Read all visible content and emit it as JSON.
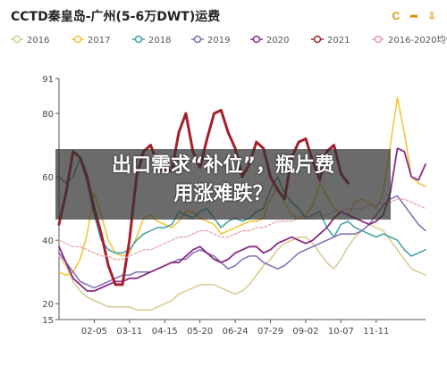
{
  "header": {
    "title": "CCTD秦皇岛-广州(5-6万DWT)运费",
    "tools": [
      {
        "icon": "refresh-icon",
        "glyph": "C"
      },
      {
        "icon": "share-icon",
        "glyph": "➦"
      },
      {
        "icon": "save-icon",
        "glyph": "⇩"
      }
    ]
  },
  "headline": {
    "line1": "出口需求“补位”，瓶片费",
    "line2": "用涨难跌？"
  },
  "chart_data": {
    "type": "line",
    "ylim": [
      15,
      91
    ],
    "yticks": [
      15,
      20,
      40,
      60,
      80,
      91
    ],
    "xlim": [
      0,
      52
    ],
    "xticks": [
      {
        "x": 5,
        "label": "02-05"
      },
      {
        "x": 10,
        "label": "03-11"
      },
      {
        "x": 15,
        "label": "04-15"
      },
      {
        "x": 20,
        "label": "05-20"
      },
      {
        "x": 25,
        "label": "06-24"
      },
      {
        "x": 30,
        "label": "07-29"
      },
      {
        "x": 35,
        "label": "09-02"
      },
      {
        "x": 40,
        "label": "10-07"
      },
      {
        "x": 45,
        "label": "11-11"
      }
    ],
    "grid": false,
    "legend_position": "top",
    "series": [
      {
        "name": "2016",
        "color": "#d8c98a",
        "dash": false,
        "width": 1.5,
        "values": [
          35,
          32,
          27,
          24,
          22,
          21,
          20,
          19,
          19,
          19,
          19,
          18,
          18,
          18,
          19,
          20,
          21,
          23,
          24,
          25,
          26,
          26,
          26,
          25,
          24,
          23,
          24,
          26,
          29,
          32,
          34,
          37,
          39,
          40,
          41,
          41,
          39,
          36,
          33,
          31,
          34,
          38,
          41,
          43,
          45,
          44,
          43,
          40,
          37,
          34,
          31,
          30,
          29
        ]
      },
      {
        "name": "2017",
        "color": "#f2c230",
        "dash": false,
        "width": 1.5,
        "values": [
          30,
          29,
          30,
          34,
          42,
          55,
          48,
          40,
          36,
          35,
          36,
          41,
          47,
          48,
          46,
          45,
          44,
          46,
          49,
          49,
          47,
          46,
          45,
          42,
          43,
          44,
          45,
          46,
          46,
          47,
          53,
          57,
          52,
          48,
          47,
          48,
          51,
          58,
          54,
          50,
          49,
          48,
          52,
          53,
          52,
          50,
          55,
          70,
          85,
          74,
          60,
          58,
          57
        ]
      },
      {
        "name": "2018",
        "color": "#3a9ea5",
        "dash": false,
        "width": 1.5,
        "values": [
          60,
          58,
          60,
          66,
          58,
          48,
          40,
          37,
          36,
          36,
          37,
          40,
          42,
          43,
          44,
          44,
          45,
          49,
          48,
          47,
          49,
          50,
          47,
          44,
          46,
          47,
          46,
          47,
          49,
          50,
          56,
          60,
          55,
          52,
          50,
          47,
          48,
          49,
          44,
          41,
          45,
          46,
          44,
          43,
          42,
          41,
          42,
          41,
          40,
          37,
          35,
          36,
          37
        ]
      },
      {
        "name": "2019",
        "color": "#7d6bb3",
        "dash": false,
        "width": 1.5,
        "values": [
          36,
          33,
          30,
          27,
          26,
          25,
          26,
          27,
          28,
          29,
          29,
          30,
          30,
          30,
          31,
          32,
          33,
          34,
          34,
          36,
          37,
          36,
          35,
          33,
          31,
          32,
          34,
          35,
          35,
          33,
          32,
          31,
          32,
          34,
          36,
          37,
          38,
          39,
          40,
          41,
          42,
          42,
          42,
          43,
          45,
          48,
          51,
          53,
          54,
          51,
          48,
          45,
          43
        ]
      },
      {
        "name": "2020",
        "color": "#8c2a84",
        "dash": false,
        "width": 1.8,
        "values": [
          38,
          33,
          28,
          26,
          24,
          24,
          25,
          26,
          27,
          27,
          28,
          28,
          29,
          30,
          31,
          32,
          33,
          33,
          35,
          37,
          38,
          36,
          34,
          33,
          34,
          36,
          37,
          38,
          38,
          36,
          37,
          39,
          40,
          41,
          40,
          39,
          40,
          42,
          44,
          47,
          49,
          48,
          47,
          46,
          45,
          46,
          48,
          55,
          69,
          68,
          60,
          59,
          64
        ]
      },
      {
        "name": "2021",
        "color": "#a51f2a",
        "dash": false,
        "width": 3,
        "values": [
          45,
          55,
          68,
          66,
          60,
          50,
          42,
          32,
          26,
          26,
          40,
          60,
          68,
          70,
          64,
          62,
          62,
          74,
          80,
          68,
          63,
          72,
          80,
          81,
          74,
          69,
          60,
          64,
          71,
          69,
          60,
          56,
          53,
          66,
          71,
          72,
          65,
          59,
          68,
          70,
          61,
          58,
          null,
          null,
          null,
          null,
          null,
          null,
          null,
          null,
          null,
          null,
          null
        ]
      },
      {
        "name": "2016-2020均值",
        "color": "#e8a0a8",
        "dash": true,
        "width": 1.2,
        "values": [
          40,
          39,
          38,
          38,
          37,
          36,
          35,
          35,
          34,
          34,
          35,
          36,
          37,
          37,
          38,
          39,
          40,
          41,
          41,
          42,
          43,
          43,
          42,
          41,
          41,
          42,
          43,
          43,
          44,
          44,
          45,
          46,
          46,
          46,
          47,
          47,
          47,
          48,
          48,
          49,
          49,
          50,
          50,
          50,
          51,
          51,
          52,
          52,
          53,
          53,
          52,
          51,
          50
        ]
      }
    ]
  }
}
